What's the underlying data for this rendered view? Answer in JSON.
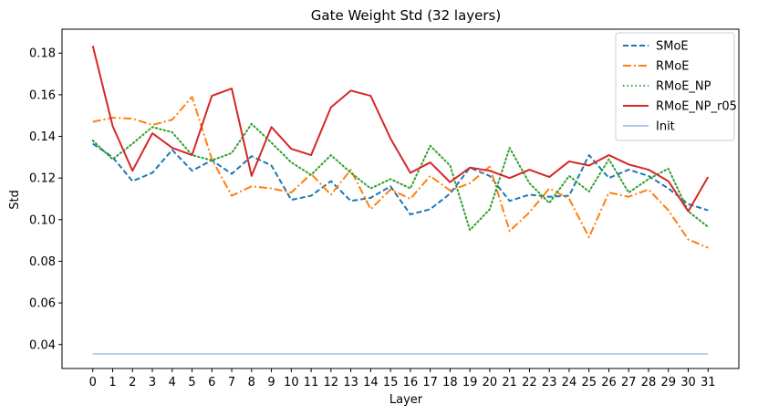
{
  "chart_data": {
    "type": "line",
    "title": "Gate Weight Std (32 layers)",
    "xlabel": "Layer",
    "ylabel": "Std",
    "x": [
      0,
      1,
      2,
      3,
      4,
      5,
      6,
      7,
      8,
      9,
      10,
      11,
      12,
      13,
      14,
      15,
      16,
      17,
      18,
      19,
      20,
      21,
      22,
      23,
      24,
      25,
      26,
      27,
      28,
      29,
      30,
      31
    ],
    "xlim": [
      -1.55,
      32.55
    ],
    "ylim": [
      0.0285,
      0.1915
    ],
    "yticks": [
      0.04,
      0.06,
      0.08,
      0.1,
      0.12,
      0.14,
      0.16,
      0.18
    ],
    "ytick_labels": [
      "0.04",
      "0.06",
      "0.08",
      "0.10",
      "0.12",
      "0.14",
      "0.16",
      "0.18"
    ],
    "xtick_labels": [
      "0",
      "1",
      "2",
      "3",
      "4",
      "5",
      "6",
      "7",
      "8",
      "9",
      "10",
      "11",
      "12",
      "13",
      "14",
      "15",
      "16",
      "17",
      "18",
      "19",
      "20",
      "21",
      "22",
      "23",
      "24",
      "25",
      "26",
      "27",
      "28",
      "29",
      "30",
      "31"
    ],
    "grid": false,
    "legend_position": "top-right",
    "series": [
      {
        "name": "SMoE",
        "color": "#1f77b4",
        "style": "dashed",
        "values": [
          0.1365,
          0.13,
          0.1185,
          0.1225,
          0.1335,
          0.1235,
          0.1285,
          0.122,
          0.1305,
          0.126,
          0.1095,
          0.1115,
          0.1185,
          0.109,
          0.1105,
          0.116,
          0.1025,
          0.105,
          0.1125,
          0.125,
          0.121,
          0.109,
          0.112,
          0.111,
          0.1115,
          0.131,
          0.12,
          0.124,
          0.121,
          0.115,
          0.1075,
          0.1045
        ]
      },
      {
        "name": "RMoE",
        "color": "#ff7f0e",
        "style": "dashdot",
        "values": [
          0.147,
          0.149,
          0.1485,
          0.1455,
          0.148,
          0.159,
          0.129,
          0.1115,
          0.116,
          0.115,
          0.113,
          0.122,
          0.112,
          0.124,
          0.105,
          0.1145,
          0.11,
          0.121,
          0.114,
          0.1175,
          0.1255,
          0.0945,
          0.1035,
          0.115,
          0.11,
          0.0915,
          0.113,
          0.111,
          0.1145,
          0.1045,
          0.0905,
          0.0865
        ]
      },
      {
        "name": "RMoE_NP",
        "color": "#2ca02c",
        "style": "dotted",
        "values": [
          0.138,
          0.129,
          0.1365,
          0.1445,
          0.142,
          0.131,
          0.1285,
          0.132,
          0.146,
          0.137,
          0.1275,
          0.1215,
          0.131,
          0.1225,
          0.115,
          0.1195,
          0.115,
          0.1355,
          0.126,
          0.095,
          0.105,
          0.1345,
          0.1175,
          0.108,
          0.121,
          0.1135,
          0.129,
          0.113,
          0.1195,
          0.1245,
          0.104,
          0.0965
        ]
      },
      {
        "name": "RMoE_NP_r05",
        "color": "#d62728",
        "style": "solid",
        "values": [
          0.1835,
          0.145,
          0.1235,
          0.1415,
          0.1345,
          0.131,
          0.1595,
          0.163,
          0.121,
          0.1445,
          0.134,
          0.131,
          0.154,
          0.162,
          0.1595,
          0.139,
          0.1225,
          0.1275,
          0.118,
          0.125,
          0.1235,
          0.12,
          0.124,
          0.1205,
          0.128,
          0.126,
          0.131,
          0.1265,
          0.124,
          0.1185,
          0.104,
          0.1205
        ]
      },
      {
        "name": "Init",
        "color": "#aec7e8",
        "style": "solid",
        "values": [
          0.0355,
          0.0355,
          0.0355,
          0.0355,
          0.0355,
          0.0355,
          0.0355,
          0.0355,
          0.0355,
          0.0355,
          0.0355,
          0.0355,
          0.0355,
          0.0355,
          0.0355,
          0.0355,
          0.0355,
          0.0355,
          0.0355,
          0.0355,
          0.0355,
          0.0355,
          0.0355,
          0.0355,
          0.0355,
          0.0355,
          0.0355,
          0.0355,
          0.0355,
          0.0355,
          0.0355,
          0.0355
        ]
      }
    ]
  }
}
